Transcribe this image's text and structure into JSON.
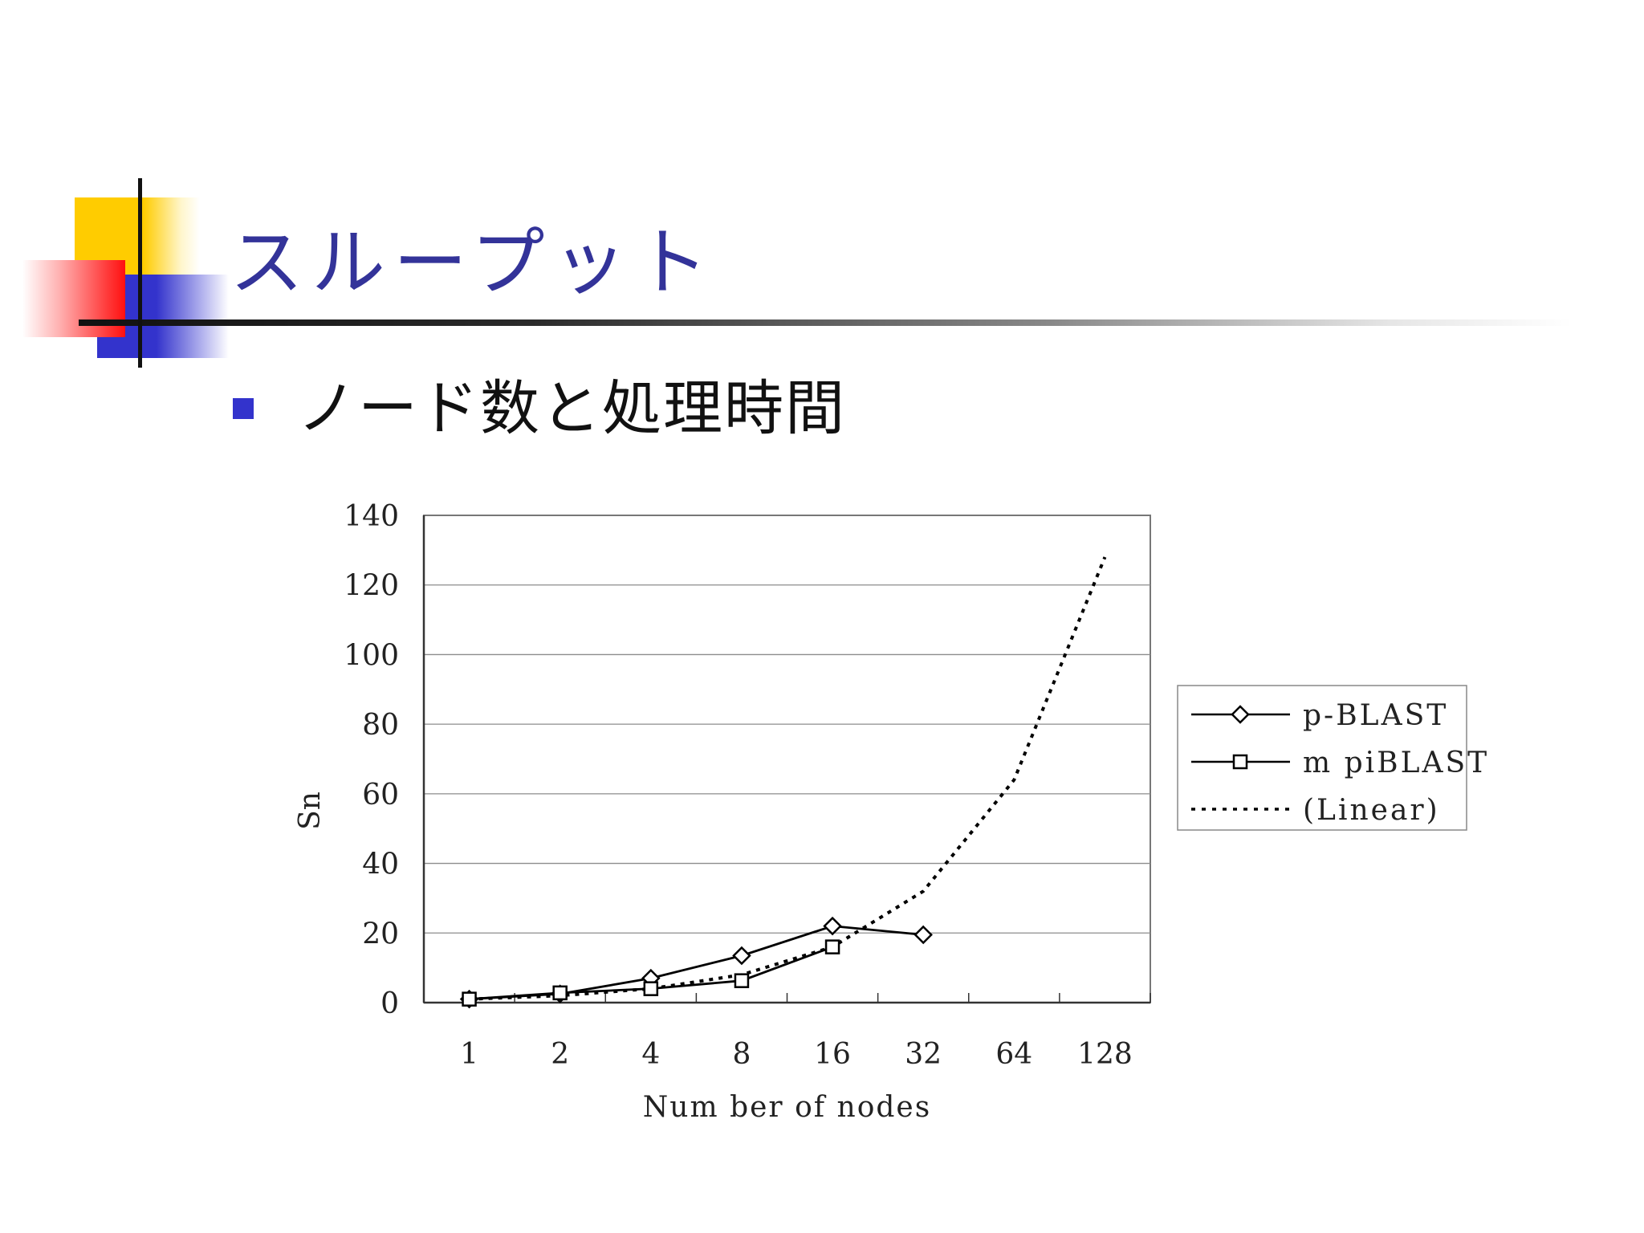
{
  "slide": {
    "title": "スループット",
    "bullet": "ノード数と処理時間"
  },
  "chart_data": {
    "type": "line",
    "categories": [
      "1",
      "2",
      "4",
      "8",
      "16",
      "32",
      "64",
      "128"
    ],
    "xlabel": "Num ber of nodes",
    "ylabel": "Sn",
    "ylim": [
      0,
      140
    ],
    "yticks": [
      0,
      20,
      40,
      60,
      80,
      100,
      120,
      140
    ],
    "grid": true,
    "legend_position": "right",
    "series": [
      {
        "name": "p-BLAST",
        "marker": "diamond",
        "line": "solid",
        "values": [
          1,
          2.5,
          7,
          13.5,
          22,
          19.5,
          null,
          null
        ]
      },
      {
        "name": "m piBLAST",
        "marker": "square",
        "line": "solid",
        "values": [
          1,
          2.8,
          4,
          6.3,
          16,
          null,
          null,
          null
        ]
      },
      {
        "name": "(Linear)",
        "marker": "none",
        "line": "dotted",
        "values": [
          1,
          2,
          4,
          8,
          16,
          32,
          64,
          128
        ]
      }
    ]
  }
}
